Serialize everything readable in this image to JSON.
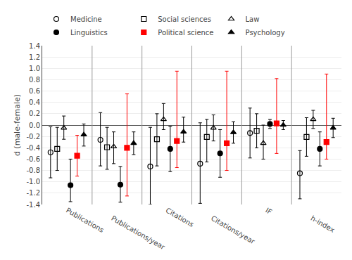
{
  "chart_data": {
    "type": "errorbar",
    "categories": [
      "Publications",
      "Publications/year",
      "Citations",
      "Citations/year",
      "IF",
      "h-index"
    ],
    "series": [
      {
        "name": "Medicine",
        "marker": "circle-open",
        "color": "black",
        "values": [
          -0.48,
          -0.26,
          -0.73,
          -0.68,
          -0.14,
          -0.85
        ],
        "ci_lo": [
          -0.93,
          -0.72,
          -1.4,
          -1.38,
          -0.58,
          -1.3
        ],
        "ci_hi": [
          -0.03,
          0.22,
          -0.04,
          0.04,
          0.3,
          -0.45
        ]
      },
      {
        "name": "Social sciences",
        "marker": "square-open",
        "color": "black",
        "values": [
          -0.42,
          -0.39,
          -0.25,
          -0.21,
          -0.1,
          -0.21
        ],
        "ci_lo": [
          -0.8,
          -0.78,
          -0.72,
          -0.65,
          -0.4,
          -0.55
        ],
        "ci_hi": [
          -0.04,
          -0.04,
          0.2,
          0.1,
          0.2,
          0.13
        ]
      },
      {
        "name": "Law",
        "marker": "triangle-up-open",
        "color": "black",
        "values": [
          -0.05,
          -0.38,
          0.1,
          -0.05,
          -0.32,
          0.1
        ],
        "ci_lo": [
          -0.25,
          -0.68,
          -0.08,
          -0.28,
          -0.6,
          -0.06
        ],
        "ci_hi": [
          0.16,
          -0.12,
          0.38,
          0.18,
          0.0,
          0.26
        ]
      },
      {
        "name": "Linguistics",
        "marker": "circle",
        "color": "black",
        "values": [
          -1.06,
          -1.05,
          -0.42,
          -0.5,
          0.02,
          -0.42
        ],
        "ci_lo": [
          -1.35,
          -1.36,
          -0.82,
          -0.92,
          -0.06,
          -0.72
        ],
        "ci_hi": [
          -0.6,
          -0.73,
          -0.02,
          -0.08,
          0.1,
          -0.12
        ]
      },
      {
        "name": "Political science",
        "marker": "square",
        "color": "red",
        "values": [
          -0.54,
          -0.4,
          -0.28,
          -0.32,
          0.03,
          -0.3
        ],
        "ci_lo": [
          -0.9,
          -1.25,
          -0.75,
          -0.8,
          -0.5,
          -0.6
        ],
        "ci_hi": [
          -0.18,
          0.55,
          0.95,
          0.95,
          0.82,
          0.9
        ]
      },
      {
        "name": "Psychology",
        "marker": "triangle-up",
        "color": "black",
        "values": [
          -0.17,
          -0.32,
          -0.12,
          -0.13,
          0.0,
          -0.05
        ],
        "ci_lo": [
          -0.37,
          -0.52,
          -0.3,
          -0.32,
          -0.08,
          -0.22
        ],
        "ci_hi": [
          0.02,
          -0.12,
          0.14,
          0.06,
          0.08,
          0.12
        ]
      }
    ],
    "ylabel": "d (male-female)",
    "ylim": [
      -1.4,
      1.4
    ],
    "yticks": [
      -1.4,
      -1.2,
      {
        "value": -1.0,
        "label": "-1.0"
      },
      -0.8,
      -0.6,
      -0.4,
      -0.2,
      {
        "value": 0.0,
        "label": "0.0"
      },
      0.2,
      0.4,
      0.6,
      0.8,
      {
        "value": 1.0,
        "label": "1.0"
      },
      1.2,
      1.4
    ],
    "grid": true,
    "legend": "top"
  }
}
